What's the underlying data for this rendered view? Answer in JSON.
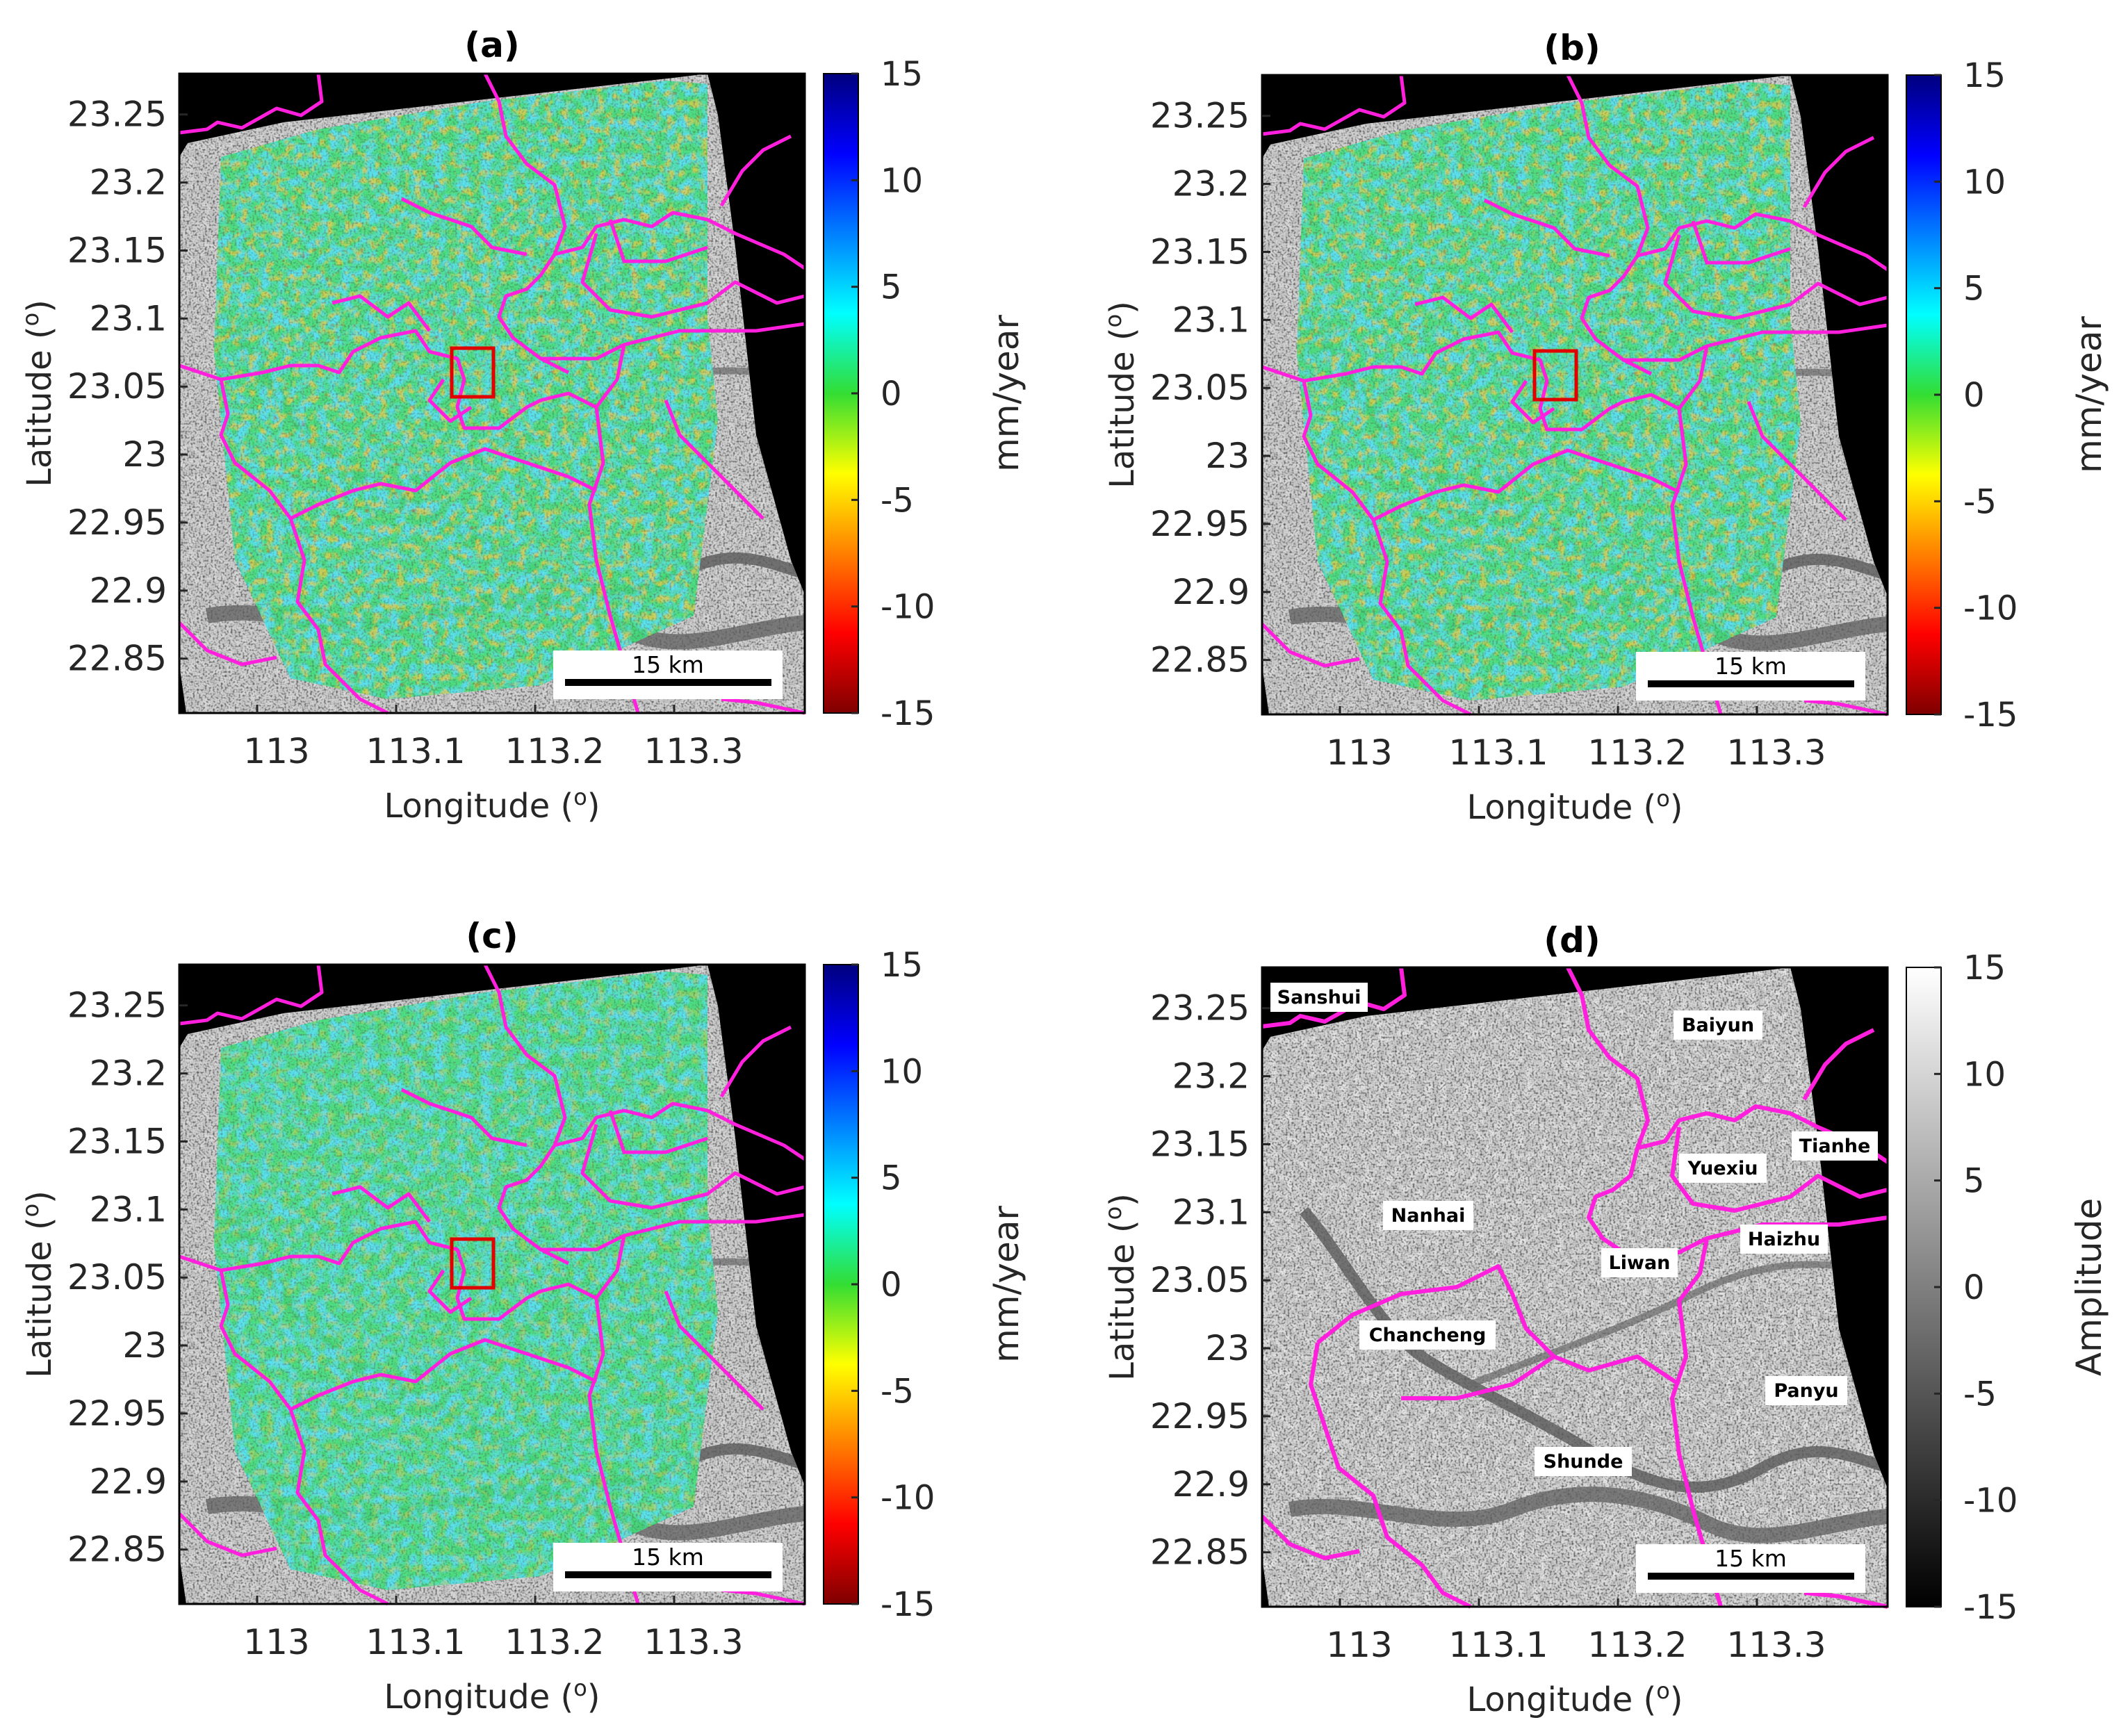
{
  "panels": [
    {
      "id": "a",
      "title": "(a)",
      "kind": "velocity",
      "colorbar_label": "mm/year"
    },
    {
      "id": "b",
      "title": "(b)",
      "kind": "velocity",
      "colorbar_label": "mm/year"
    },
    {
      "id": "c",
      "title": "(c)",
      "kind": "velocity",
      "colorbar_label": "mm/year"
    },
    {
      "id": "d",
      "title": "(d)",
      "kind": "amplitude",
      "colorbar_label": "Amplitude"
    }
  ],
  "axes": {
    "xlabel": "Longitude (",
    "ylabel": "Latitude (",
    "degree_symbol": "o",
    "xticks": [
      "113",
      "113.1",
      "113.2",
      "113.3"
    ],
    "yticks": [
      "23.25",
      "23.2",
      "23.15",
      "23.1",
      "23.05",
      "23",
      "22.95",
      "22.9",
      "22.85"
    ],
    "xlim": [
      112.93,
      113.38
    ],
    "ylim": [
      22.81,
      23.28
    ]
  },
  "colorbar": {
    "ticks": [
      "15",
      "10",
      "5",
      "0",
      "-5",
      "-10",
      "-15"
    ],
    "range": [
      -15,
      15
    ]
  },
  "scale_bar": {
    "label": "15 km"
  },
  "districts": [
    "Sanshui",
    "Baiyun",
    "Tianhe",
    "Yuexiu",
    "Nanhai",
    "Haizhu",
    "Liwan",
    "Chancheng",
    "Panyu",
    "Shunde"
  ],
  "colors": {
    "boundary": "#ff1fdc",
    "highlight_box": "#e00000",
    "frame": "#000000"
  }
}
